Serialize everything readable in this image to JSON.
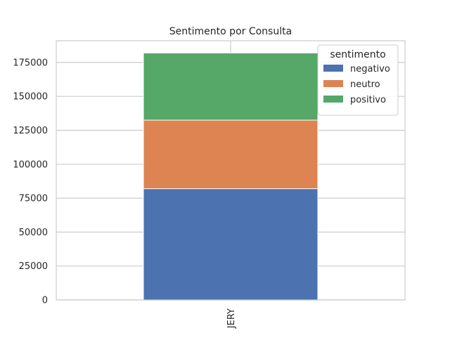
{
  "chart_data": {
    "type": "bar",
    "stacked": true,
    "title": "Sentimento por Consulta",
    "xlabel": "",
    "ylabel": "",
    "categories": [
      "JERY"
    ],
    "series": [
      {
        "name": "negativo",
        "values": [
          82000
        ],
        "color": "#4c72b0"
      },
      {
        "name": "neutro",
        "values": [
          50500
        ],
        "color": "#dd8452"
      },
      {
        "name": "positivo",
        "values": [
          49500
        ],
        "color": "#55a868"
      }
    ],
    "ylim": [
      0,
      191000
    ],
    "yticks": [
      0,
      25000,
      50000,
      75000,
      100000,
      125000,
      150000,
      175000
    ],
    "grid": true,
    "legend": {
      "title": "sentimento",
      "placement": "top-right"
    }
  }
}
